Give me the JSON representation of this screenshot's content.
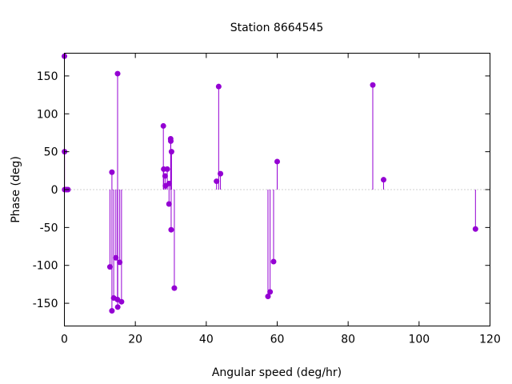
{
  "chart_data": {
    "type": "scatter",
    "style": "impulses-with-points",
    "title": "Station 8664545",
    "xlabel": "Angular speed (deg/hr)",
    "ylabel": "Phase (deg)",
    "xlim": [
      0,
      120
    ],
    "ylim": [
      -180,
      180
    ],
    "xticks": [
      0,
      20,
      40,
      60,
      80,
      100,
      120
    ],
    "yticks": [
      -150,
      -100,
      -50,
      0,
      50,
      100,
      150
    ],
    "grid": false,
    "zero_line": true,
    "series": [
      {
        "color": "#9400d3",
        "points": [
          {
            "x": 0.0,
            "y": 176
          },
          {
            "x": 0.04,
            "y": 50
          },
          {
            "x": 0.08,
            "y": 0
          },
          {
            "x": 0.5,
            "y": 0
          },
          {
            "x": 1.0,
            "y": 0
          },
          {
            "x": 12.85,
            "y": -102
          },
          {
            "x": 13.4,
            "y": -160
          },
          {
            "x": 13.4,
            "y": 23
          },
          {
            "x": 13.9,
            "y": -143
          },
          {
            "x": 14.5,
            "y": -90
          },
          {
            "x": 14.96,
            "y": -145
          },
          {
            "x": 15.0,
            "y": 153
          },
          {
            "x": 15.04,
            "y": -155
          },
          {
            "x": 15.6,
            "y": -96
          },
          {
            "x": 16.1,
            "y": -148
          },
          {
            "x": 27.9,
            "y": 84
          },
          {
            "x": 28.0,
            "y": 27
          },
          {
            "x": 28.4,
            "y": 18
          },
          {
            "x": 28.5,
            "y": 5
          },
          {
            "x": 29.0,
            "y": 27
          },
          {
            "x": 29.5,
            "y": 8
          },
          {
            "x": 29.5,
            "y": -19
          },
          {
            "x": 29.96,
            "y": 67
          },
          {
            "x": 30.0,
            "y": 64
          },
          {
            "x": 30.1,
            "y": -53
          },
          {
            "x": 30.2,
            "y": 50
          },
          {
            "x": 31.0,
            "y": -130
          },
          {
            "x": 42.9,
            "y": 11
          },
          {
            "x": 43.5,
            "y": 136
          },
          {
            "x": 44.0,
            "y": 21
          },
          {
            "x": 57.4,
            "y": -141
          },
          {
            "x": 58.0,
            "y": -135
          },
          {
            "x": 58.98,
            "y": -95
          },
          {
            "x": 60.0,
            "y": 37
          },
          {
            "x": 86.95,
            "y": 138
          },
          {
            "x": 90.0,
            "y": 13
          },
          {
            "x": 115.9,
            "y": -52
          }
        ]
      }
    ]
  }
}
